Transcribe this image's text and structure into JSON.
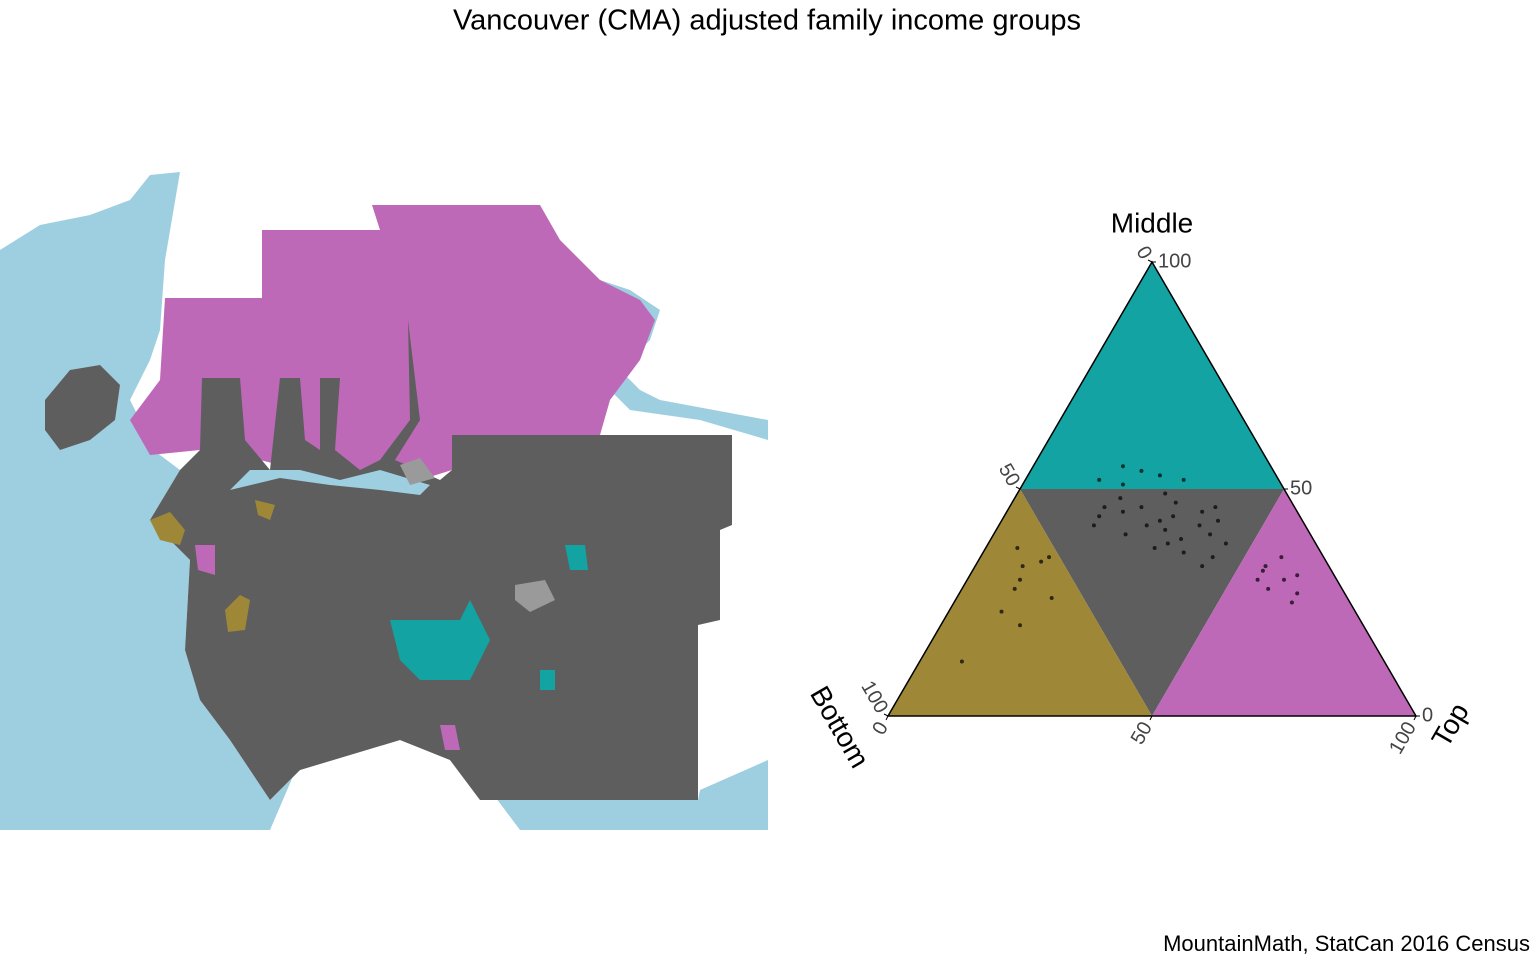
{
  "title": "Vancouver (CMA) adjusted family income groups",
  "caption": "MountainMath, StatCan 2016 Census",
  "chart_data": {
    "type": "ternary",
    "lim": [
      0,
      100
    ],
    "axes": {
      "bottom": {
        "label": "Bottom",
        "ticks": [
          0,
          50,
          100
        ]
      },
      "middle": {
        "label": "Middle",
        "ticks": [
          0,
          50,
          100
        ]
      },
      "top": {
        "label": "Top",
        "ticks": [
          0,
          50,
          100
        ]
      }
    },
    "region_colors": {
      "bottom": "#9e8837",
      "middle": "#14a3a3",
      "top": "#bd69b8",
      "mixed": "#5e5e5e"
    },
    "point_color": "#000000",
    "points": {
      "bottom": [
        80,
        67,
        60,
        54,
        56,
        57,
        62,
        58,
        52,
        65,
        34,
        25,
        22,
        30,
        18,
        28,
        32,
        27,
        25,
        18,
        30,
        35,
        22,
        28,
        20,
        24,
        33,
        26,
        15,
        19,
        29,
        38,
        40,
        21,
        23,
        16,
        27,
        31,
        17,
        24,
        36,
        12,
        10,
        14,
        8,
        11,
        13,
        9,
        15,
        7
      ],
      "middle": [
        12,
        23,
        30,
        34,
        26,
        37,
        28,
        33,
        35,
        20,
        52,
        54,
        53,
        51,
        52,
        55,
        48,
        43,
        39,
        45,
        42,
        40,
        47,
        38,
        42,
        44,
        45,
        36,
        46,
        40,
        46,
        44,
        42,
        35,
        49,
        43,
        41,
        37,
        38,
        33,
        46,
        33,
        30,
        28,
        35,
        25,
        32,
        27,
        30,
        31
      ],
      "top": [
        8,
        10,
        10,
        12,
        18,
        6,
        10,
        9,
        13,
        15,
        14,
        21,
        25,
        19,
        30,
        17,
        20,
        30,
        36,
        37,
        28,
        25,
        31,
        34,
        38,
        32,
        22,
        38,
        39,
        41,
        25,
        18,
        18,
        44,
        28,
        41,
        32,
        32,
        45,
        43,
        18,
        55,
        60,
        58,
        57,
        64,
        55,
        64,
        55,
        62
      ]
    }
  }
}
